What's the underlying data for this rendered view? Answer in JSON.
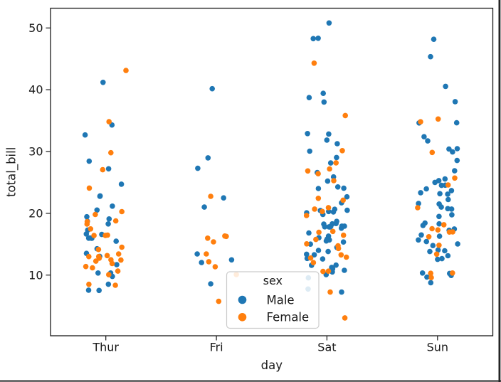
{
  "figure": {
    "background": "#ffffff",
    "ink": "#1a1a1a",
    "window_edge_color": "#242424"
  },
  "chart_data": {
    "type": "scatter",
    "variant": "strip-plot",
    "title": "",
    "xlabel": "day",
    "ylabel": "total_bill",
    "categories": [
      "Thur",
      "Fri",
      "Sat",
      "Sun"
    ],
    "yticks": [
      10,
      20,
      30,
      40,
      50
    ],
    "ylim": [
      0.18,
      53.2
    ],
    "xlim": [
      -0.5,
      3.5
    ],
    "grid": false,
    "legend": {
      "title": "sex",
      "position": "inside-lower-center",
      "entries": [
        {
          "label": "Male",
          "color": "#1f77b4"
        },
        {
          "label": "Female",
          "color": "#ff7f0e"
        }
      ]
    },
    "series": [
      {
        "name": "Male",
        "color": "#1f77b4",
        "values_by_category": {
          "Thur": [
            27.2,
            22.76,
            17.29,
            19.44,
            16.66,
            32.68,
            15.98,
            13.03,
            18.28,
            24.71,
            21.16,
            11.69,
            14.26,
            15.95,
            8.52,
            22.82,
            19.08,
            10.33,
            16.0,
            34.3,
            41.19,
            9.78,
            7.51,
            28.44,
            15.48,
            16.58,
            7.56,
            10.34,
            13.51,
            18.71,
            20.53
          ],
          "Fri": [
            28.97,
            22.49,
            40.17,
            27.28,
            12.03,
            21.01,
            12.46,
            8.58,
            13.42
          ],
          "Sat": [
            20.65,
            17.92,
            39.42,
            19.82,
            17.81,
            13.37,
            12.69,
            21.7,
            9.55,
            18.35,
            17.78,
            24.06,
            16.31,
            18.69,
            31.27,
            16.04,
            38.01,
            11.24,
            48.27,
            20.29,
            13.81,
            11.02,
            18.29,
            17.59,
            20.08,
            20.23,
            15.01,
            10.51,
            17.92,
            15.36,
            20.49,
            25.21,
            18.24,
            14.0,
            50.81,
            15.81,
            7.25,
            31.85,
            16.82,
            32.9,
            17.89,
            14.48,
            26.59,
            38.73,
            24.27,
            30.06,
            25.89,
            48.33,
            28.15,
            11.59,
            7.74,
            20.45,
            13.28,
            24.01,
            15.69,
            11.61,
            10.77,
            15.53,
            10.07,
            12.6,
            32.83,
            29.03,
            22.67,
            17.82
          ],
          "Sun": [
            10.34,
            21.01,
            23.68,
            25.29,
            8.77,
            26.88,
            15.04,
            14.78,
            10.27,
            15.42,
            18.43,
            21.58,
            16.29,
            17.46,
            13.94,
            9.68,
            30.4,
            18.29,
            22.23,
            32.4,
            28.55,
            18.04,
            12.54,
            9.94,
            25.56,
            19.49,
            38.07,
            23.95,
            29.93,
            14.07,
            13.13,
            17.26,
            24.55,
            19.77,
            48.17,
            25.0,
            16.49,
            21.5,
            12.66,
            13.81,
            24.52,
            20.76,
            31.71,
            34.63,
            34.65,
            23.33,
            45.35,
            23.17,
            40.55,
            20.69,
            30.46,
            23.1,
            15.69
          ]
        }
      },
      {
        "name": "Female",
        "color": "#ff7f0e",
        "values_by_category": {
          "Thur": [
            10.07,
            34.83,
            10.65,
            12.43,
            24.08,
            13.42,
            12.48,
            29.8,
            14.52,
            11.38,
            20.27,
            11.17,
            12.26,
            18.26,
            8.51,
            14.15,
            13.16,
            17.47,
            27.05,
            16.43,
            8.35,
            18.64,
            11.87,
            19.81,
            43.11,
            13.0,
            12.74,
            13.0,
            16.4,
            16.47,
            18.78
          ],
          "Fri": [
            5.75,
            16.32,
            22.75,
            11.35,
            15.38,
            12.16,
            13.42,
            15.98,
            16.27,
            10.09
          ],
          "Sat": [
            20.29,
            15.77,
            19.65,
            15.06,
            20.69,
            16.93,
            26.41,
            16.45,
            3.07,
            12.02,
            17.07,
            26.86,
            25.28,
            14.73,
            44.3,
            22.42,
            20.92,
            14.31,
            7.25,
            10.59,
            10.63,
            12.76,
            13.27,
            28.17,
            12.9,
            30.14,
            22.12,
            35.83,
            27.18
          ],
          "Sun": [
            16.99,
            24.59,
            35.26,
            14.83,
            10.33,
            16.97,
            10.29,
            34.81,
            25.71,
            17.31,
            29.85,
            13.39,
            16.21,
            17.51,
            9.6,
            20.9,
            18.15
          ]
        }
      }
    ]
  }
}
